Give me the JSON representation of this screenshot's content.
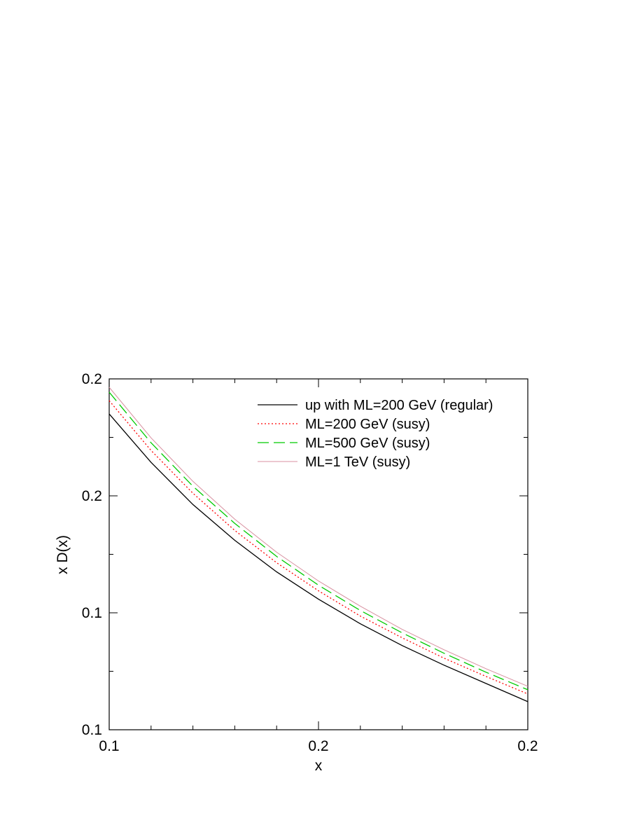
{
  "chart_data": {
    "type": "line",
    "title": "",
    "xlabel": "x",
    "ylabel": "x D(x)",
    "x_tick_labels": [
      "0.1",
      "0.2",
      "0.2"
    ],
    "y_tick_labels": [
      "0.1",
      "0.1",
      "0.2",
      "0.2"
    ],
    "xlim": [
      0.1,
      0.2
    ],
    "ylim": [
      0.1,
      0.2
    ],
    "grid": false,
    "legend_position": "top-right",
    "x": [
      0.1,
      0.11,
      0.12,
      0.13,
      0.14,
      0.15,
      0.16,
      0.17,
      0.18,
      0.19,
      0.2
    ],
    "series": [
      {
        "name": "up with ML=200 GeV (regular)",
        "color": "#000000",
        "style": "solid",
        "values": [
          0.19,
          0.1762,
          0.1642,
          0.154,
          0.145,
          0.1372,
          0.1302,
          0.124,
          0.1184,
          0.1132,
          0.108
        ]
      },
      {
        "name": "ML=200 GeV (susy)",
        "color": "#ff0000",
        "style": "dotted",
        "values": [
          0.1938,
          0.1796,
          0.1674,
          0.1568,
          0.1476,
          0.1396,
          0.1324,
          0.1262,
          0.1204,
          0.1152,
          0.1102
        ]
      },
      {
        "name": "ML=500 GeV (susy)",
        "color": "#00cc00",
        "style": "dashed",
        "values": [
          0.1962,
          0.1818,
          0.1694,
          0.1588,
          0.1494,
          0.1412,
          0.134,
          0.1276,
          0.1218,
          0.1164,
          0.1114
        ]
      },
      {
        "name": "ML=1 TeV (susy)",
        "color": "#d890a0",
        "style": "solid-thin",
        "values": [
          0.1976,
          0.1832,
          0.1708,
          0.16,
          0.1506,
          0.1424,
          0.1352,
          0.1286,
          0.1228,
          0.1174,
          0.1124
        ]
      }
    ]
  }
}
